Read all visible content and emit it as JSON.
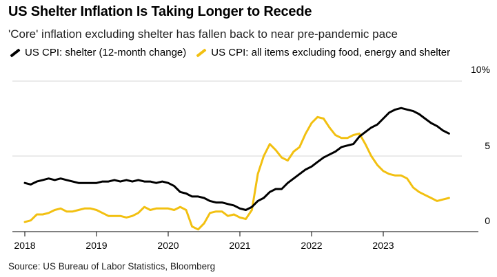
{
  "title": "US Shelter Inflation Is Taking Longer to Recede",
  "subtitle": "'Core' inflation excluding shelter has fallen back to near pre-pandemic pace",
  "source": "Source: US Bureau of Labor Statistics, Bloomberg",
  "chart_data": {
    "type": "line",
    "title": "US Shelter Inflation Is Taking Longer to Recede",
    "subtitle": "'Core' inflation excluding shelter has fallen back to near pre-pandemic pace",
    "xlabel": "",
    "ylabel": "",
    "x_ticks": [
      2018,
      2019,
      2020,
      2021,
      2022,
      2023
    ],
    "y_ticks": [
      {
        "value": 0,
        "label": "0"
      },
      {
        "value": 5,
        "label": "5"
      },
      {
        "value": 10,
        "label": "10%"
      }
    ],
    "ylim": [
      0,
      10
    ],
    "xlim": [
      2018.0,
      2024.0
    ],
    "gridlines": true,
    "legend_position": "top-left",
    "series": [
      {
        "name": "US CPI: shelter (12-month change)",
        "color": "#000000",
        "x": [
          2018.0,
          2018.083,
          2018.167,
          2018.25,
          2018.333,
          2018.417,
          2018.5,
          2018.583,
          2018.667,
          2018.75,
          2018.833,
          2018.917,
          2019.0,
          2019.083,
          2019.167,
          2019.25,
          2019.333,
          2019.417,
          2019.5,
          2019.583,
          2019.667,
          2019.75,
          2019.833,
          2019.917,
          2020.0,
          2020.083,
          2020.167,
          2020.25,
          2020.333,
          2020.417,
          2020.5,
          2020.583,
          2020.667,
          2020.75,
          2020.833,
          2020.917,
          2021.0,
          2021.083,
          2021.167,
          2021.25,
          2021.333,
          2021.417,
          2021.5,
          2021.583,
          2021.667,
          2021.75,
          2021.833,
          2021.917,
          2022.0,
          2022.083,
          2022.167,
          2022.25,
          2022.333,
          2022.417,
          2022.5,
          2022.583,
          2022.667,
          2022.75,
          2022.833,
          2022.917,
          2023.0,
          2023.083,
          2023.167,
          2023.25,
          2023.333,
          2023.417,
          2023.5,
          2023.583,
          2023.667,
          2023.75,
          2023.833,
          2023.917
        ],
        "values": [
          3.2,
          3.1,
          3.3,
          3.4,
          3.5,
          3.4,
          3.5,
          3.4,
          3.3,
          3.2,
          3.2,
          3.2,
          3.2,
          3.3,
          3.3,
          3.4,
          3.3,
          3.4,
          3.3,
          3.4,
          3.3,
          3.3,
          3.2,
          3.3,
          3.2,
          3.0,
          2.6,
          2.5,
          2.3,
          2.3,
          2.2,
          2.0,
          1.9,
          1.9,
          1.8,
          1.7,
          1.5,
          1.4,
          1.6,
          2.0,
          2.2,
          2.6,
          2.8,
          2.8,
          3.2,
          3.5,
          3.8,
          4.1,
          4.3,
          4.6,
          4.9,
          5.1,
          5.3,
          5.6,
          5.7,
          5.8,
          6.3,
          6.6,
          6.9,
          7.1,
          7.5,
          7.9,
          8.1,
          8.2,
          8.1,
          8.0,
          7.8,
          7.5,
          7.2,
          7.0,
          6.7,
          6.5
        ]
      },
      {
        "name": "US CPI: all items excluding food, energy and shelter",
        "color": "#f2c011",
        "x": [
          2018.0,
          2018.083,
          2018.167,
          2018.25,
          2018.333,
          2018.417,
          2018.5,
          2018.583,
          2018.667,
          2018.75,
          2018.833,
          2018.917,
          2019.0,
          2019.083,
          2019.167,
          2019.25,
          2019.333,
          2019.417,
          2019.5,
          2019.583,
          2019.667,
          2019.75,
          2019.833,
          2019.917,
          2020.0,
          2020.083,
          2020.167,
          2020.25,
          2020.333,
          2020.417,
          2020.5,
          2020.583,
          2020.667,
          2020.75,
          2020.833,
          2020.917,
          2021.0,
          2021.083,
          2021.167,
          2021.25,
          2021.333,
          2021.417,
          2021.5,
          2021.583,
          2021.667,
          2021.75,
          2021.833,
          2021.917,
          2022.0,
          2022.083,
          2022.167,
          2022.25,
          2022.333,
          2022.417,
          2022.5,
          2022.583,
          2022.667,
          2022.75,
          2022.833,
          2022.917,
          2023.0,
          2023.083,
          2023.167,
          2023.25,
          2023.333,
          2023.417,
          2023.5,
          2023.583,
          2023.667,
          2023.75,
          2023.833,
          2023.917
        ],
        "values": [
          0.6,
          0.7,
          1.1,
          1.1,
          1.2,
          1.4,
          1.5,
          1.3,
          1.3,
          1.4,
          1.5,
          1.5,
          1.4,
          1.2,
          1.0,
          1.0,
          1.0,
          0.9,
          1.0,
          1.2,
          1.6,
          1.4,
          1.5,
          1.5,
          1.5,
          1.4,
          1.6,
          1.4,
          0.3,
          0.1,
          0.5,
          1.2,
          1.3,
          1.3,
          1.0,
          1.1,
          0.9,
          0.8,
          1.4,
          3.8,
          5.0,
          5.8,
          5.4,
          4.9,
          4.7,
          5.3,
          5.6,
          6.5,
          7.2,
          7.6,
          7.5,
          6.9,
          6.4,
          6.2,
          6.2,
          6.4,
          6.5,
          5.8,
          5.0,
          4.4,
          4.0,
          3.8,
          3.7,
          3.7,
          3.5,
          2.9,
          2.6,
          2.4,
          2.2,
          2.0,
          2.1,
          2.2
        ]
      }
    ]
  }
}
